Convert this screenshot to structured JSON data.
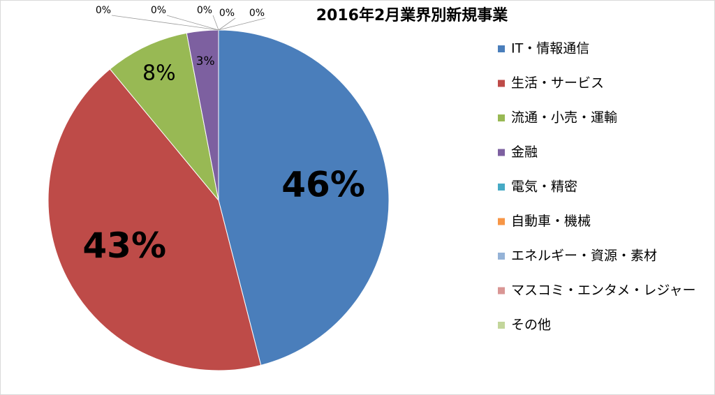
{
  "chart_data": {
    "type": "pie",
    "title": "2016年2月業界別新規事業",
    "categories": [
      "IT・情報通信",
      "生活・サービス",
      "流通・小売・運輸",
      "金融",
      "電気・精密",
      "自動車・機械",
      "エネルギー・資源・素材",
      "マスコミ・エンタメ・レジャー",
      "その他"
    ],
    "values": [
      46,
      43,
      8,
      3,
      0,
      0,
      0,
      0,
      0
    ],
    "value_labels": [
      "46%",
      "43%",
      "8%",
      "3%",
      "0%",
      "0%",
      "0%",
      "0%",
      "0%"
    ],
    "colors": [
      "#4a7ebb",
      "#be4b48",
      "#98b954",
      "#7d60a0",
      "#46aac5",
      "#f79646",
      "#95b3d7",
      "#d99694",
      "#c3d69b"
    ],
    "legend": "right"
  }
}
